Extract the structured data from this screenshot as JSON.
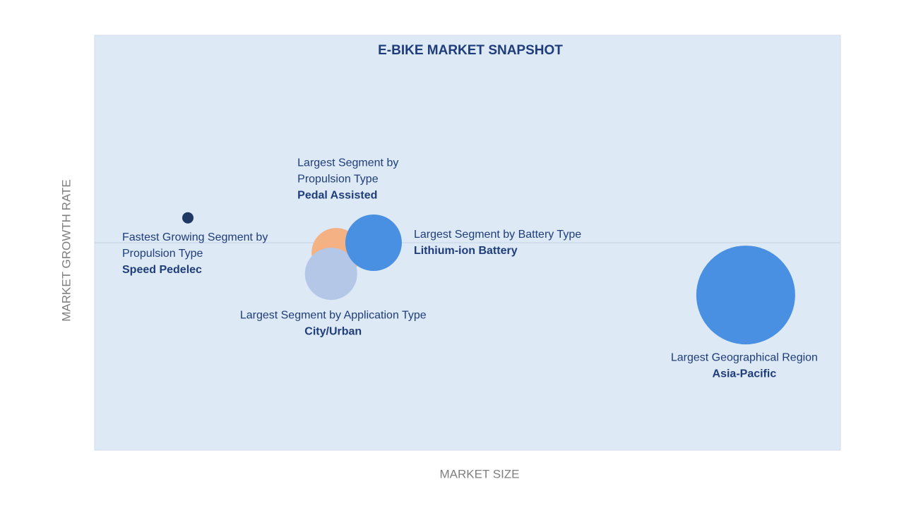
{
  "chart_data": {
    "type": "bubble",
    "title": "E-BIKE MARKET SNAPSHOT",
    "x_label": "MARKET SIZE",
    "y_label": "MARKET GROWTH RATE",
    "xlim": [
      0,
      100
    ],
    "ylim": [
      0,
      100
    ],
    "reference_lines": [
      50
    ],
    "points": [
      {
        "label_lines": [
          "Fastest Growing Segment by",
          "Propulsion Type"
        ],
        "name": "Speed Pedelec",
        "color": "#1f3864",
        "x": 12.5,
        "y": 56,
        "size": 8
      },
      {
        "label_lines": [
          "Largest Segment by",
          "Propulsion Type"
        ],
        "name": "Pedal Assisted",
        "color": "#f4b183",
        "x": 32.4,
        "y": 47.6,
        "size": 35
      },
      {
        "label_lines": [
          "Largest Segment by Application Type"
        ],
        "name": "City/Urban",
        "color": "#b4c7e7",
        "x": 31.7,
        "y": 42.5,
        "size": 37
      },
      {
        "label_lines": [
          "Largest Segment by Battery Type"
        ],
        "name": "Lithium-ion Battery",
        "color": "#4a90e2",
        "x": 37.4,
        "y": 50,
        "size": 40
      },
      {
        "label_lines": [
          "Largest Geographical Region"
        ],
        "name": "Asia-Pacific",
        "color": "#4a90e2",
        "x": 87.3,
        "y": 37.4,
        "size": 70
      }
    ]
  }
}
